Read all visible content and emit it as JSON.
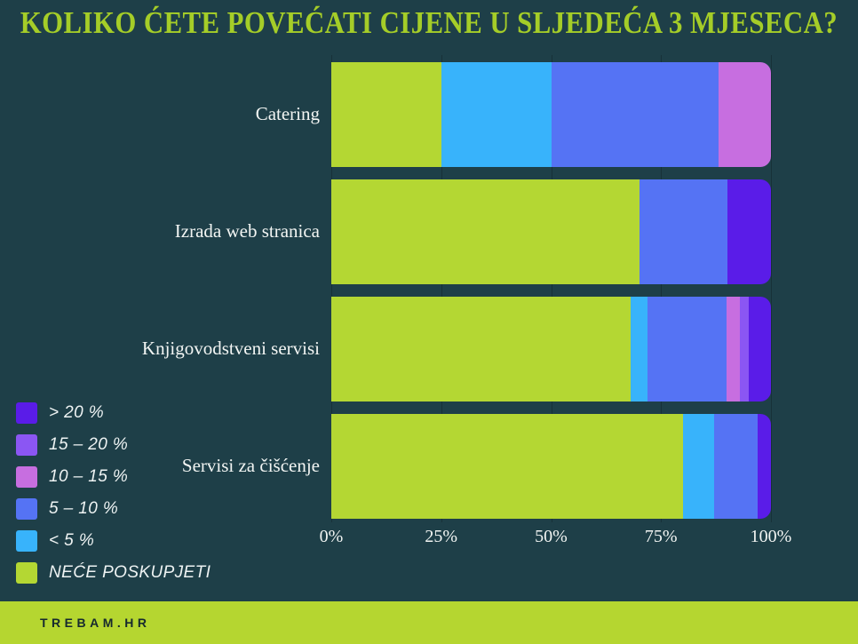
{
  "title": "KOLIKO ĆETE POVEĆATI CIJENE U SLJEDEĆA 3 MJESECA?",
  "colors": {
    "background": "#1e3f48",
    "title": "#a5cd28",
    "category_label": "#f2f5f3",
    "axis_label": "#f2f5f3",
    "legend_label": "#eef3f3",
    "footer_background": "#b5d630",
    "footer_text": "#16292e"
  },
  "chart_data": {
    "type": "bar",
    "orientation": "horizontal",
    "stacked": true,
    "title": "KOLIKO ĆETE POVEĆATI CIJENE U SLJEDEĆA 3 MJESECA?",
    "categories": [
      "Catering",
      "Izrada web stranica",
      "Knjigovodstveni servisi",
      "Servisi za čišćenje"
    ],
    "series": [
      {
        "name": "NEĆE POSKUPJETI",
        "color": "#b4d733",
        "values": [
          25,
          70,
          68,
          80
        ]
      },
      {
        "name": "< 5 %",
        "color": "#38b3fb",
        "values": [
          25,
          0,
          4,
          7
        ]
      },
      {
        "name": "5 – 10 %",
        "color": "#5573f4",
        "values": [
          38,
          20,
          18,
          10
        ]
      },
      {
        "name": "10 – 15 %",
        "color": "#c76ee0",
        "values": [
          12,
          0,
          3,
          0
        ]
      },
      {
        "name": "15 – 20 %",
        "color": "#8b56f3",
        "values": [
          0,
          0,
          2,
          0
        ]
      },
      {
        "name": "> 20 %",
        "color": "#5a1ce8",
        "values": [
          0,
          10,
          5,
          3
        ]
      }
    ],
    "x_ticks": [
      "0%",
      "25%",
      "50%",
      "75%",
      "100%"
    ],
    "xlim": [
      0,
      100
    ],
    "grid": true,
    "legend_position": "bottom-left"
  },
  "legend": {
    "items": [
      {
        "label": "> 20 %",
        "color": "#5a1ce8"
      },
      {
        "label": "15 – 20 %",
        "color": "#8b56f3"
      },
      {
        "label": "10 – 15 %",
        "color": "#c76ee0"
      },
      {
        "label": "5 – 10 %",
        "color": "#5573f4"
      },
      {
        "label": "< 5 %",
        "color": "#38b3fb"
      },
      {
        "label": "NEĆE POSKUPJETI",
        "color": "#b4d733"
      }
    ]
  },
  "footer": {
    "brand": "TREBAM.HR"
  }
}
